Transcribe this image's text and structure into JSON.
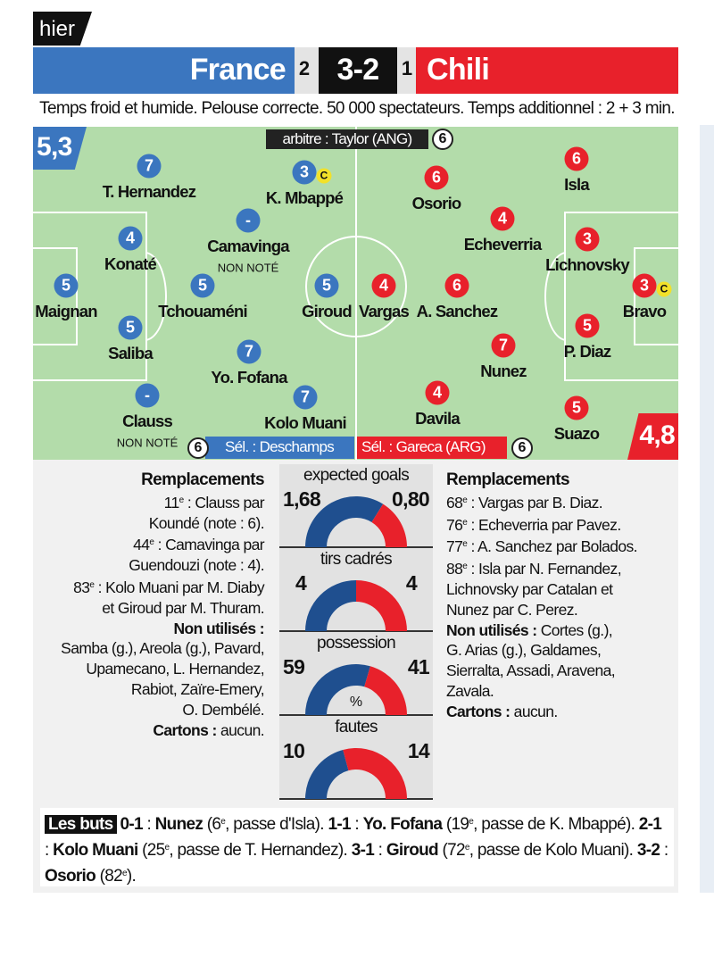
{
  "tag": "hier",
  "match": {
    "home": "France",
    "away": "Chili",
    "score": "3-2",
    "halftime_home": "2",
    "halftime_away": "1",
    "conditions": "Temps froid et humide. Pelouse correcte. 50 000 spectateurs. Temps additionnel : 2 + 3 min."
  },
  "colors": {
    "home": "#3b76bf",
    "away": "#e8212b",
    "gauge_home": "#1f4f8f",
    "pitch": "#b3dcaa"
  },
  "ratings": {
    "home_team": "5,3",
    "away_team": "4,8"
  },
  "referee": {
    "label": "arbitre : Taylor (ANG)",
    "note": "6"
  },
  "coaches": {
    "home": {
      "label": "Sél. : Deschamps",
      "note": "6"
    },
    "away": {
      "label": "Sél. : Gareca (ARG)",
      "note": "6"
    }
  },
  "players": [
    {
      "team": "home",
      "name": "T. Hernandez",
      "note": "7"
    },
    {
      "team": "home",
      "name": "K. Mbappé",
      "note": "3",
      "captain": "C"
    },
    {
      "team": "home",
      "name": "Camavinga",
      "note": "-",
      "extra": "NON NOTÉ"
    },
    {
      "team": "home",
      "name": "Konaté",
      "note": "4"
    },
    {
      "team": "home",
      "name": "Maignan",
      "note": "5"
    },
    {
      "team": "home",
      "name": "Tchouaméni",
      "note": "5"
    },
    {
      "team": "home",
      "name": "Giroud",
      "note": "5"
    },
    {
      "team": "home",
      "name": "Saliba",
      "note": "5"
    },
    {
      "team": "home",
      "name": "Yo. Fofana",
      "note": "7"
    },
    {
      "team": "home",
      "name": "Clauss",
      "note": "-",
      "extra": "NON NOTÉ"
    },
    {
      "team": "home",
      "name": "Kolo Muani",
      "note": "7"
    },
    {
      "team": "away",
      "name": "Isla",
      "note": "6"
    },
    {
      "team": "away",
      "name": "Osorio",
      "note": "6"
    },
    {
      "team": "away",
      "name": "Echeverria",
      "note": "4"
    },
    {
      "team": "away",
      "name": "Lichnovsky",
      "note": "3"
    },
    {
      "team": "away",
      "name": "Vargas",
      "note": "4"
    },
    {
      "team": "away",
      "name": "A. Sanchez",
      "note": "6"
    },
    {
      "team": "away",
      "name": "Bravo",
      "note": "3",
      "captain": "C"
    },
    {
      "team": "away",
      "name": "P. Diaz",
      "note": "5"
    },
    {
      "team": "away",
      "name": "Nunez",
      "note": "7"
    },
    {
      "team": "away",
      "name": "Davila",
      "note": "4"
    },
    {
      "team": "away",
      "name": "Suazo",
      "note": "5"
    }
  ],
  "stats": [
    {
      "label": "expected goals",
      "home": "1,68",
      "away": "0,80",
      "home_value": 1.68,
      "away_value": 0.8
    },
    {
      "label": "tirs cadrés",
      "home": "4",
      "away": "4",
      "home_value": 4,
      "away_value": 4
    },
    {
      "label": "possession",
      "home": "59",
      "away": "41",
      "home_value": 59,
      "away_value": 41,
      "unit": "%"
    },
    {
      "label": "fautes",
      "home": "10",
      "away": "14",
      "home_value": 10,
      "away_value": 14
    }
  ],
  "home_column": {
    "title": "Remplacements",
    "lines": [
      {
        "num": "11",
        "sup": "e",
        "text": " : Clauss par"
      },
      {
        "text": "Koundé (note : 6)."
      },
      {
        "num": "44",
        "sup": "e",
        "text": " : Camavinga par"
      },
      {
        "text": "Guendouzi (note : 4)."
      },
      {
        "num": "83",
        "sup": "e",
        "text": " : Kolo Muani par M. Diaby"
      },
      {
        "text": "et Giroud par M. Thuram."
      },
      {
        "bold": "Non utilisés :"
      },
      {
        "text": "Samba (g.), Areola (g.), Pavard,"
      },
      {
        "text": "Upamecano, L. Hernandez,"
      },
      {
        "text": "Rabiot, Zaïre-Emery,"
      },
      {
        "text": "O. Dembélé."
      },
      {
        "bold": "Cartons :",
        "text": " aucun."
      }
    ]
  },
  "away_column": {
    "title": "Remplacements",
    "lines": [
      {
        "num": "68",
        "sup": "e",
        "text": " : Vargas par B. Diaz."
      },
      {
        "num": "76",
        "sup": "e",
        "text": " : Echeverria par Pavez."
      },
      {
        "num": "77",
        "sup": "e",
        "text": " : A. Sanchez par Bolados."
      },
      {
        "num": "88",
        "sup": "e",
        "text": " : Isla par N. Fernandez,"
      },
      {
        "text": "Lichnovsky par Catalan et"
      },
      {
        "text": "Nunez par C. Perez."
      },
      {
        "bold": "Non utilisés :",
        "text": " Cortes (g.),"
      },
      {
        "text": "G. Arias (g.), Galdames,"
      },
      {
        "text": "Sierralta, Assadi, Aravena,"
      },
      {
        "text": "Zavala."
      },
      {
        "bold": "Cartons :",
        "text": " aucun."
      }
    ]
  },
  "goals": {
    "title": "Les buts",
    "items": [
      {
        "score": "0-1",
        "scorer": "Nunez",
        "minute": "6",
        "sup": "e",
        "detail": ", passe d'Isla)."
      },
      {
        "score": "1-1",
        "scorer": "Yo. Fofana",
        "minute": "19",
        "sup": "e",
        "detail": ", passe de K. Mbappé)."
      },
      {
        "score": "2-1",
        "scorer": "Kolo Muani",
        "minute": "25",
        "sup": "e",
        "detail": ", passe de T. Hernandez)."
      },
      {
        "score": "3-1",
        "scorer": "Giroud",
        "minute": "72",
        "sup": "e",
        "detail": ", passe de Kolo Muani)."
      },
      {
        "score": "3-2",
        "scorer": "Osorio",
        "minute": "82",
        "sup": "e",
        "detail": ")."
      }
    ]
  }
}
